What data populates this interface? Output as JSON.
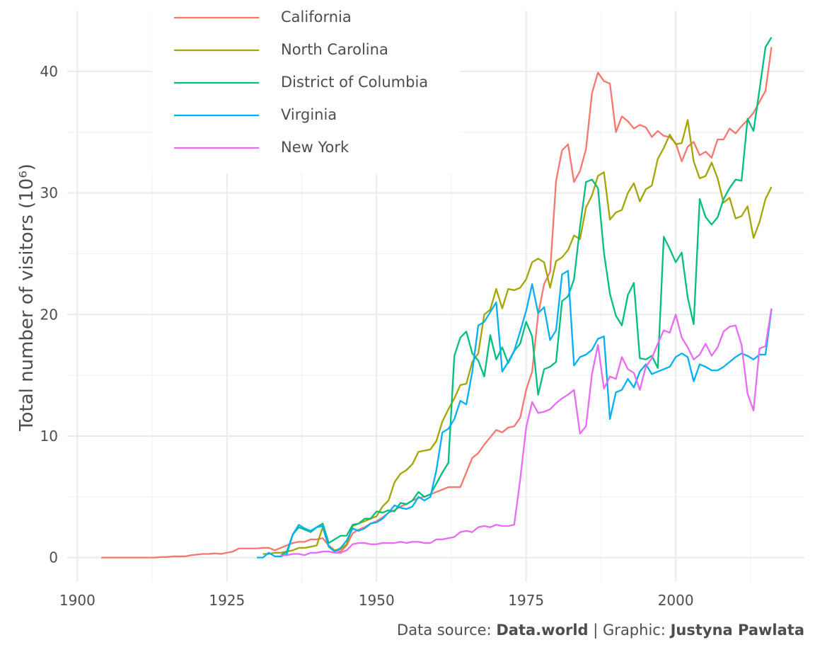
{
  "chart_data": {
    "type": "line",
    "y_label": "Total number of visitors (10⁶)",
    "caption": {
      "source_label": "Data source:",
      "source": "Data.world",
      "graphic_label": "| Graphic:",
      "author": "Justyna Pawlata"
    },
    "xlim": [
      1898.3,
      2021.5
    ],
    "xticks": [
      1900,
      1925,
      1950,
      1975,
      2000
    ],
    "ylim": [
      -2,
      45
    ],
    "yticks": [
      0,
      10,
      20,
      30,
      40
    ],
    "grid": true,
    "minor_grid": true,
    "legend_position": "top-left",
    "x": [
      1904,
      1905,
      1906,
      1907,
      1908,
      1909,
      1910,
      1911,
      1912,
      1913,
      1914,
      1915,
      1916,
      1917,
      1918,
      1919,
      1920,
      1921,
      1922,
      1923,
      1924,
      1925,
      1926,
      1927,
      1928,
      1929,
      1930,
      1931,
      1932,
      1933,
      1934,
      1935,
      1936,
      1937,
      1938,
      1939,
      1940,
      1941,
      1942,
      1943,
      1944,
      1945,
      1946,
      1947,
      1948,
      1949,
      1950,
      1951,
      1952,
      1953,
      1954,
      1955,
      1956,
      1957,
      1958,
      1959,
      1960,
      1961,
      1962,
      1963,
      1964,
      1965,
      1966,
      1967,
      1968,
      1969,
      1970,
      1971,
      1972,
      1973,
      1974,
      1975,
      1976,
      1977,
      1978,
      1979,
      1980,
      1981,
      1982,
      1983,
      1984,
      1985,
      1986,
      1987,
      1988,
      1989,
      1990,
      1991,
      1992,
      1993,
      1994,
      1995,
      1996,
      1997,
      1998,
      1999,
      2000,
      2001,
      2002,
      2003,
      2004,
      2005,
      2006,
      2007,
      2008,
      2009,
      2010,
      2011,
      2012,
      2013,
      2014,
      2015,
      2016
    ],
    "series": [
      {
        "name": "California",
        "color": "#F8766D",
        "values": [
          0,
          0,
          0,
          0,
          0,
          0,
          0,
          0,
          0,
          0,
          0.05,
          0.05,
          0.1,
          0.1,
          0.1,
          0.2,
          0.25,
          0.3,
          0.3,
          0.35,
          0.3,
          0.4,
          0.5,
          0.75,
          0.75,
          0.75,
          0.75,
          0.8,
          0.8,
          0.6,
          0.8,
          1.0,
          1.2,
          1.3,
          1.3,
          1.5,
          1.5,
          1.6,
          1.0,
          0.6,
          0.5,
          1.0,
          2.0,
          2.3,
          2.5,
          2.8,
          3.0,
          3.3,
          3.7,
          3.9,
          4.2,
          4.4,
          4.7,
          4.9,
          5.0,
          5.2,
          5.4,
          5.6,
          5.8,
          5.8,
          5.8,
          7.0,
          8.2,
          8.6,
          9.3,
          9.9,
          10.5,
          10.3,
          10.7,
          10.8,
          11.5,
          13.8,
          15.3,
          20.0,
          22.5,
          23.5,
          31.0,
          33.5,
          34.0,
          30.9,
          31.8,
          33.6,
          38.2,
          39.9,
          39.2,
          39.0,
          35.0,
          36.3,
          35.9,
          35.3,
          35.6,
          35.4,
          34.6,
          35.1,
          34.7,
          34.6,
          34.1,
          32.6,
          33.8,
          34.2,
          33.1,
          33.4,
          32.9,
          34.4,
          34.4,
          35.3,
          34.9,
          35.5,
          36.0,
          36.6,
          37.5,
          38.4,
          42.0
        ]
      },
      {
        "name": "North Carolina",
        "color": "#A3A500",
        "values": [
          null,
          null,
          null,
          null,
          null,
          null,
          null,
          null,
          null,
          null,
          null,
          null,
          null,
          null,
          null,
          null,
          null,
          null,
          null,
          null,
          null,
          null,
          null,
          null,
          null,
          null,
          null,
          0.3,
          0.3,
          0.4,
          0.4,
          0.5,
          0.6,
          0.8,
          0.8,
          0.9,
          1.0,
          2.5,
          0.9,
          0.6,
          0.7,
          1.1,
          2.6,
          2.8,
          3.0,
          3.2,
          3.4,
          4.2,
          4.7,
          6.2,
          6.9,
          7.2,
          7.7,
          8.7,
          8.8,
          8.9,
          9.6,
          11.2,
          12.2,
          13.1,
          14.2,
          14.3,
          16.1,
          16.8,
          20.0,
          20.4,
          22.1,
          20.5,
          22.1,
          22.0,
          22.2,
          22.9,
          24.3,
          24.6,
          24.3,
          22.2,
          24.4,
          24.7,
          25.3,
          26.5,
          26.2,
          28.8,
          29.8,
          31.4,
          31.7,
          27.8,
          28.4,
          28.6,
          30.0,
          30.8,
          29.3,
          30.3,
          30.6,
          32.8,
          33.7,
          34.8,
          34.0,
          34.1,
          36.0,
          32.6,
          31.2,
          31.4,
          32.5,
          31.2,
          29.2,
          29.6,
          27.9,
          28.1,
          28.9,
          26.3,
          27.6,
          29.5,
          30.5
        ]
      },
      {
        "name": "District of Columbia",
        "color": "#00BF7D",
        "values": [
          null,
          null,
          null,
          null,
          null,
          null,
          null,
          null,
          null,
          null,
          null,
          null,
          null,
          null,
          null,
          null,
          null,
          null,
          null,
          null,
          null,
          null,
          null,
          null,
          null,
          null,
          null,
          null,
          null,
          null,
          0.2,
          0.5,
          1.9,
          2.5,
          2.3,
          2.1,
          2.5,
          2.8,
          1.2,
          1.5,
          1.8,
          1.8,
          2.7,
          2.8,
          3.2,
          3.2,
          3.8,
          3.7,
          3.9,
          3.8,
          4.5,
          4.4,
          4.7,
          5.4,
          5.0,
          5.2,
          6.1,
          7.0,
          7.8,
          16.6,
          18.1,
          18.6,
          16.8,
          16.2,
          14.9,
          18.3,
          16.3,
          17.3,
          16.0,
          17.0,
          17.6,
          19.4,
          18.2,
          13.4,
          15.5,
          15.7,
          16.1,
          21.1,
          21.5,
          22.9,
          27.2,
          30.9,
          31.1,
          30.4,
          25.1,
          21.7,
          19.9,
          19.1,
          21.6,
          22.6,
          16.4,
          16.3,
          16.6,
          15.6,
          26.4,
          25.4,
          24.3,
          25.1,
          21.4,
          19.2,
          29.5,
          28.0,
          27.4,
          28.0,
          29.5,
          30.4,
          31.1,
          31.0,
          36.1,
          35.1,
          38.5,
          42.0,
          42.8
        ]
      },
      {
        "name": "Virginia",
        "color": "#00B0F6",
        "values": [
          null,
          null,
          null,
          null,
          null,
          null,
          null,
          null,
          null,
          null,
          null,
          null,
          null,
          null,
          null,
          null,
          null,
          null,
          null,
          null,
          null,
          null,
          null,
          null,
          null,
          null,
          0.0,
          0.0,
          0.4,
          0.1,
          0.1,
          0.3,
          1.9,
          2.7,
          2.4,
          2.2,
          2.5,
          2.6,
          0.9,
          0.5,
          0.8,
          1.4,
          2.4,
          2.2,
          2.4,
          2.8,
          2.9,
          3.2,
          3.7,
          4.3,
          4.1,
          4.0,
          4.2,
          5.0,
          4.7,
          5.0,
          7.2,
          10.3,
          10.6,
          11.4,
          12.9,
          12.6,
          15.3,
          19.1,
          19.4,
          20.2,
          21.0,
          15.3,
          16.1,
          17.0,
          18.6,
          20.3,
          22.5,
          20.1,
          20.6,
          17.9,
          18.7,
          23.3,
          23.6,
          15.8,
          16.5,
          16.7,
          17.1,
          18.0,
          18.2,
          11.4,
          13.6,
          13.8,
          14.7,
          14.0,
          15.3,
          15.9,
          15.1,
          15.3,
          15.5,
          15.7,
          16.5,
          16.8,
          16.5,
          14.5,
          15.9,
          15.7,
          15.4,
          15.4,
          15.7,
          16.1,
          16.5,
          16.8,
          16.6,
          16.3,
          16.7,
          16.7,
          20.4
        ]
      },
      {
        "name": "New York",
        "color": "#E76BF3",
        "values": [
          null,
          null,
          null,
          null,
          null,
          null,
          null,
          null,
          null,
          null,
          null,
          null,
          null,
          null,
          null,
          null,
          null,
          null,
          null,
          null,
          null,
          null,
          null,
          null,
          null,
          null,
          null,
          null,
          null,
          null,
          0.2,
          0.2,
          0.3,
          0.3,
          0.2,
          0.4,
          0.4,
          0.5,
          0.5,
          0.4,
          0.4,
          0.6,
          1.1,
          1.2,
          1.2,
          1.1,
          1.1,
          1.2,
          1.2,
          1.2,
          1.3,
          1.2,
          1.3,
          1.3,
          1.2,
          1.2,
          1.5,
          1.5,
          1.6,
          1.7,
          2.1,
          2.2,
          2.1,
          2.5,
          2.6,
          2.5,
          2.7,
          2.6,
          2.6,
          2.7,
          6.4,
          10.7,
          12.8,
          11.9,
          12.0,
          12.2,
          12.7,
          13.1,
          13.4,
          13.8,
          10.2,
          10.8,
          15.1,
          17.5,
          13.9,
          14.9,
          14.7,
          16.5,
          15.5,
          15.2,
          13.8,
          15.7,
          16.4,
          17.6,
          18.7,
          18.5,
          20.0,
          18.1,
          17.3,
          16.3,
          16.7,
          17.6,
          16.6,
          17.3,
          18.6,
          19.0,
          19.1,
          17.5,
          13.5,
          12.1,
          17.2,
          17.4,
          20.5
        ]
      }
    ]
  }
}
